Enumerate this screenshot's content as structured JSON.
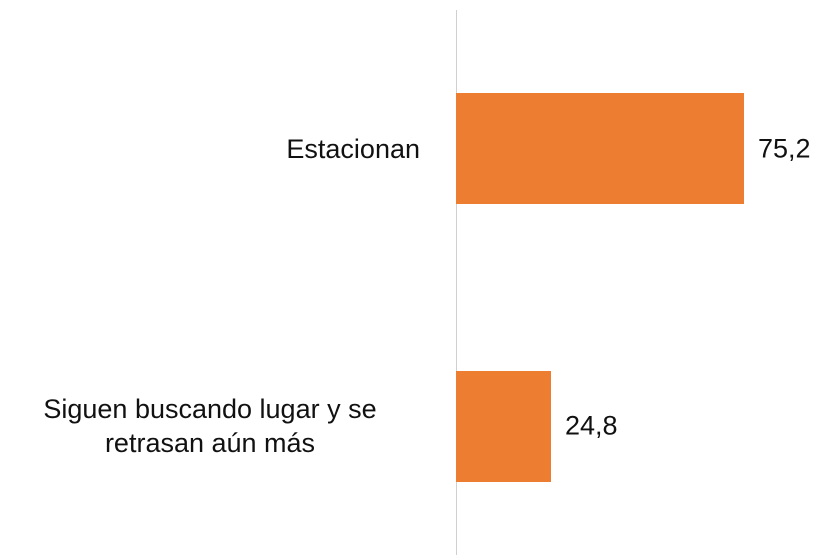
{
  "chart_data": {
    "type": "bar",
    "orientation": "horizontal",
    "categories": [
      "Estacionan",
      "Siguen buscando lugar y se retrasan aún más"
    ],
    "values": [
      75.2,
      24.8
    ],
    "value_labels": [
      "75,2",
      "24,8"
    ],
    "color": "#ed7d31",
    "xlim": [
      0,
      100
    ]
  }
}
